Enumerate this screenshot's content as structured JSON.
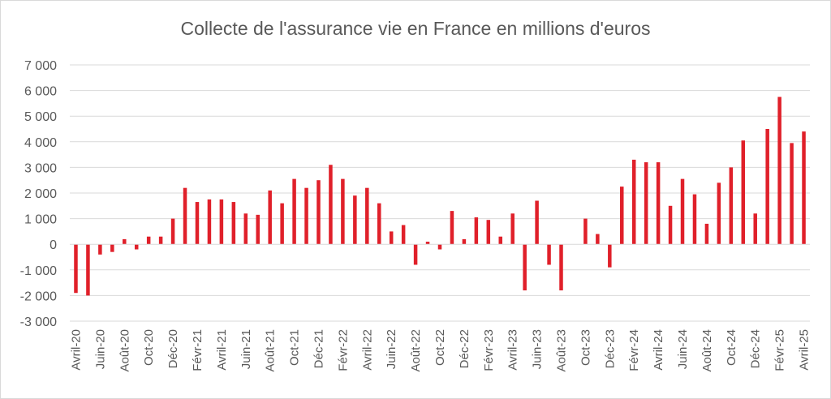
{
  "chart_data": {
    "type": "bar",
    "title": "Collecte de l'assurance vie en France en millions d'euros",
    "xlabel": "",
    "ylabel": "",
    "ylim": [
      -3000,
      7000
    ],
    "yticks": [
      7000,
      6000,
      5000,
      4000,
      3000,
      2000,
      1000,
      0,
      -1000,
      -2000,
      -3000
    ],
    "ytick_labels": [
      "7 000",
      "6 000",
      "5 000",
      "4 000",
      "3 000",
      "2 000",
      "1 000",
      "0",
      "-1 000",
      "-2 000",
      "-3 000"
    ],
    "grid": true,
    "bar_color": "#e0202a",
    "categories": [
      "Avril-20",
      "Mai-20",
      "Juin-20",
      "Juil-20",
      "Août-20",
      "Sept-20",
      "Oct-20",
      "Nov-20",
      "Déc-20",
      "Janv-21",
      "Févr-21",
      "Mars-21",
      "Avril-21",
      "Mai-21",
      "Juin-21",
      "Juil-21",
      "Août-21",
      "Sept-21",
      "Oct-21",
      "Nov-21",
      "Déc-21",
      "Janv-22",
      "Févr-22",
      "Mars-22",
      "Avril-22",
      "Mai-22",
      "Juin-22",
      "Juil-22",
      "Août-22",
      "Sept-22",
      "Oct-22",
      "Nov-22",
      "Déc-22",
      "Janv-23",
      "Févr-23",
      "Mars-23",
      "Avril-23",
      "Mai-23",
      "Juin-23",
      "Juil-23",
      "Août-23",
      "Sept-23",
      "Oct-23",
      "Nov-23",
      "Déc-23",
      "Janv-24",
      "Févr-24",
      "Mars-24",
      "Avril-24",
      "Mai-24",
      "Juin-24",
      "Juil-24",
      "Août-24",
      "Sept-24",
      "Oct-24",
      "Nov-24",
      "Déc-24",
      "Janv-25",
      "Févr-25",
      "Mars-25",
      "Avril-25"
    ],
    "x_tick_labels": [
      "Avril-20",
      "",
      "Juin-20",
      "",
      "Août-20",
      "",
      "Oct-20",
      "",
      "Déc-20",
      "",
      "Févr-21",
      "",
      "Avril-21",
      "",
      "Juin-21",
      "",
      "Août-21",
      "",
      "Oct-21",
      "",
      "Déc-21",
      "",
      "Févr-22",
      "",
      "Avril-22",
      "",
      "Juin-22",
      "",
      "Août-22",
      "",
      "Oct-22",
      "",
      "Déc-22",
      "",
      "Févr-23",
      "",
      "Avril-23",
      "",
      "Juin-23",
      "",
      "Août-23",
      "",
      "Oct-23",
      "",
      "Déc-23",
      "",
      "Févr-24",
      "",
      "Avril-24",
      "",
      "Juin-24",
      "",
      "Août-24",
      "",
      "Oct-24",
      "",
      "Déc-24",
      "",
      "Févr-25",
      "",
      "Avril-25"
    ],
    "values": [
      -1900,
      -2000,
      -400,
      -300,
      200,
      -200,
      300,
      300,
      1000,
      2200,
      1650,
      1750,
      1750,
      1650,
      1200,
      1150,
      2100,
      1600,
      2550,
      2200,
      2500,
      3100,
      2550,
      1900,
      2200,
      1600,
      500,
      750,
      -800,
      100,
      -200,
      1300,
      200,
      1050,
      950,
      300,
      1200,
      -1800,
      1700,
      -800,
      -1800,
      0,
      1000,
      400,
      -900,
      2250,
      3300,
      3200,
      3200,
      1500,
      2550,
      1950,
      800,
      2400,
      3000,
      4050,
      1200,
      4500,
      5750,
      3950,
      4400
    ]
  }
}
